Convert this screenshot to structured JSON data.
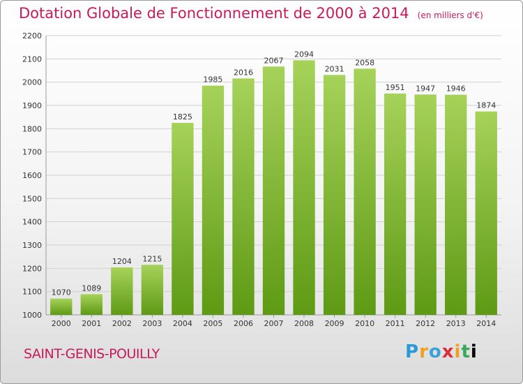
{
  "title": "Dotation Globale de Fonctionnement de 2000 à 2014",
  "unit_note": "(en milliers d'€)",
  "commune": "SAINT-GENIS-POUILLY",
  "logo_text": "Proxiti",
  "colors": {
    "title": "#c8195a",
    "bar_light": "#a6d25a",
    "bar_dark": "#5e9a14",
    "grid": "#d0d0d0"
  },
  "chart_data": {
    "type": "bar",
    "title": "Dotation Globale de Fonctionnement de 2000 à 2014",
    "xlabel": "",
    "ylabel": "",
    "ylim": [
      1000,
      2200
    ],
    "yticks": [
      1000,
      1100,
      1200,
      1300,
      1400,
      1500,
      1600,
      1700,
      1800,
      1900,
      2000,
      2100,
      2200
    ],
    "grid": true,
    "categories": [
      "2000",
      "2001",
      "2002",
      "2003",
      "2004",
      "2005",
      "2006",
      "2007",
      "2008",
      "2009",
      "2010",
      "2011",
      "2012",
      "2013",
      "2014"
    ],
    "values": [
      1070,
      1089,
      1204,
      1215,
      1825,
      1985,
      2016,
      2067,
      2094,
      2031,
      2058,
      1951,
      1947,
      1946,
      1874
    ]
  }
}
